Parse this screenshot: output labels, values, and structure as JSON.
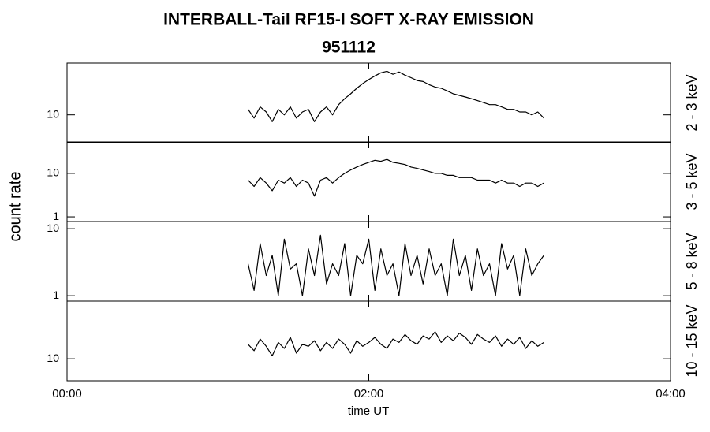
{
  "chart_data": {
    "type": "line",
    "title": "INTERBALL-Tail RF15-I SOFT X-RAY EMISSION",
    "subtitle": "951112",
    "xlabel": "time UT",
    "ylabel": "count rate",
    "xlim": [
      0,
      4
    ],
    "xticks": [
      {
        "value": 0,
        "label": "00:00"
      },
      {
        "value": 2,
        "label": "02:00"
      },
      {
        "value": 4,
        "label": "04:00"
      }
    ],
    "yscale": "log",
    "color": "#000000",
    "x": [
      1.2,
      1.24,
      1.28,
      1.32,
      1.36,
      1.4,
      1.44,
      1.48,
      1.52,
      1.56,
      1.6,
      1.64,
      1.68,
      1.72,
      1.76,
      1.8,
      1.84,
      1.88,
      1.92,
      1.96,
      2.0,
      2.04,
      2.08,
      2.12,
      2.16,
      2.2,
      2.24,
      2.28,
      2.32,
      2.36,
      2.4,
      2.44,
      2.48,
      2.52,
      2.56,
      2.6,
      2.64,
      2.68,
      2.72,
      2.76,
      2.8,
      2.84,
      2.88,
      2.92,
      2.96,
      3.0,
      3.04,
      3.08,
      3.12,
      3.16
    ],
    "panels": [
      {
        "name": "2 - 3 keV",
        "ylim": [
          4,
          55
        ],
        "yticks": [
          10
        ],
        "values": [
          12,
          9,
          13,
          11,
          8,
          12,
          10,
          13,
          9,
          11,
          12,
          8,
          11,
          13,
          10,
          14,
          17,
          20,
          24,
          28,
          32,
          36,
          40,
          42,
          38,
          41,
          37,
          34,
          31,
          30,
          27,
          25,
          24,
          22,
          20,
          19,
          18,
          17,
          16,
          15,
          14,
          14,
          13,
          12,
          12,
          11,
          11,
          10,
          11,
          9
        ]
      },
      {
        "name": "3 - 5 keV",
        "ylim": [
          0.78,
          53
        ],
        "yticks": [
          1,
          10
        ],
        "values": [
          7,
          5,
          8,
          6,
          4,
          7,
          6,
          8,
          5,
          7,
          6,
          3,
          7,
          8,
          6,
          8,
          10,
          12,
          14,
          16,
          18,
          20,
          19,
          21,
          18,
          17,
          16,
          14,
          13,
          12,
          11,
          10,
          10,
          9,
          9,
          8,
          8,
          8,
          7,
          7,
          7,
          6,
          7,
          6,
          6,
          5,
          6,
          6,
          5,
          6
        ]
      },
      {
        "name": "5 - 8 keV",
        "ylim": [
          0.83,
          12.8
        ],
        "yticks": [
          1,
          10
        ],
        "values": [
          3,
          1.2,
          6,
          2,
          4,
          1,
          7,
          2.5,
          3,
          1,
          5,
          2,
          8,
          1.5,
          3,
          2,
          6,
          1,
          4,
          3,
          7,
          1.2,
          5,
          2,
          3,
          1,
          6,
          2,
          4,
          1.5,
          5,
          2,
          3,
          1,
          7,
          2,
          4,
          1.2,
          5,
          2,
          3,
          1,
          6,
          2.5,
          4,
          1,
          5,
          2,
          3,
          4
        ]
      },
      {
        "name": "10 - 15 keV",
        "ylim": [
          4.9,
          65
        ],
        "yticks": [
          10
        ],
        "values": [
          16,
          13,
          19,
          15,
          11,
          17,
          14,
          20,
          12,
          16,
          15,
          18,
          13,
          17,
          14,
          19,
          16,
          12,
          18,
          15,
          17,
          20,
          16,
          14,
          19,
          17,
          22,
          18,
          16,
          21,
          19,
          24,
          17,
          21,
          18,
          23,
          20,
          16,
          22,
          19,
          17,
          21,
          15,
          19,
          16,
          20,
          14,
          18,
          15,
          17
        ]
      }
    ]
  }
}
